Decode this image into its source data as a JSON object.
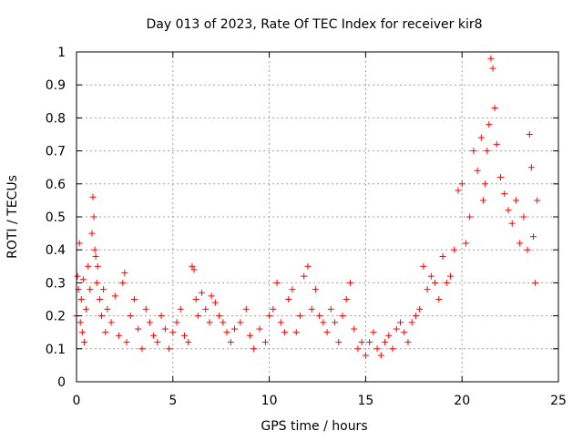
{
  "chart_data": {
    "type": "scatter",
    "title": "Day 013 of 2023, Rate Of TEC Index for receiver kir8",
    "xlabel": "GPS time / hours",
    "ylabel": "ROTI / TECUs",
    "xlim": [
      0,
      25
    ],
    "ylim": [
      0,
      1
    ],
    "x_ticks": [
      "0",
      "5",
      "10",
      "15",
      "20",
      "25"
    ],
    "y_ticks": [
      "0",
      "0.1",
      "0.2",
      "0.3",
      "0.4",
      "0.5",
      "0.6",
      "0.7",
      "0.8",
      "0.9",
      "1"
    ],
    "grid": true,
    "marker": "+",
    "color": "#ff0000",
    "series": [
      {
        "x": [
          0.0,
          0.05,
          0.1,
          0.15,
          0.2,
          0.25,
          0.3,
          0.35,
          0.4,
          0.5,
          0.6,
          0.7,
          0.8,
          0.85,
          0.9,
          0.95,
          1.0,
          1.05,
          1.1,
          1.2,
          1.3,
          1.4,
          1.5,
          1.6,
          1.8,
          2.0,
          2.2,
          2.4,
          2.5,
          2.6,
          2.8,
          3.0,
          3.2,
          3.4,
          3.6,
          3.8,
          4.0,
          4.2,
          4.4,
          4.6,
          4.8,
          5.0,
          5.2,
          5.4,
          5.6,
          5.8,
          6.0,
          6.1,
          6.2,
          6.3,
          6.5,
          6.7,
          6.9,
          7.0,
          7.2,
          7.4,
          7.6,
          7.8,
          8.0,
          8.2,
          8.5,
          8.8,
          9.0,
          9.2,
          9.5,
          9.8,
          10.0,
          10.2,
          10.4,
          10.6,
          10.8,
          11.0,
          11.2,
          11.4,
          11.6,
          11.8,
          12.0,
          12.2,
          12.4,
          12.6,
          12.8,
          13.0,
          13.2,
          13.4,
          13.6,
          13.8,
          14.0,
          14.2,
          14.4,
          14.6,
          14.8,
          15.0,
          15.2,
          15.4,
          15.6,
          15.8,
          16.0,
          16.2,
          16.4,
          16.6,
          16.8,
          17.0,
          17.2,
          17.4,
          17.6,
          17.8,
          18.0,
          18.2,
          18.4,
          18.6,
          18.8,
          19.0,
          19.2,
          19.4,
          19.6,
          19.8,
          20.0,
          20.2,
          20.4,
          20.6,
          20.8,
          21.0,
          21.1,
          21.2,
          21.3,
          21.4,
          21.5,
          21.6,
          21.7,
          21.8,
          22.0,
          22.2,
          22.4,
          22.6,
          22.8,
          23.0,
          23.2,
          23.4,
          23.5,
          23.6,
          23.7,
          23.8,
          23.9
        ],
        "y": [
          0.2,
          0.32,
          0.28,
          0.42,
          0.18,
          0.25,
          0.15,
          0.31,
          0.12,
          0.22,
          0.35,
          0.28,
          0.45,
          0.56,
          0.5,
          0.4,
          0.38,
          0.3,
          0.35,
          0.25,
          0.2,
          0.28,
          0.15,
          0.22,
          0.18,
          0.26,
          0.14,
          0.3,
          0.33,
          0.12,
          0.2,
          0.25,
          0.16,
          0.1,
          0.22,
          0.18,
          0.14,
          0.12,
          0.2,
          0.16,
          0.1,
          0.15,
          0.18,
          0.22,
          0.14,
          0.12,
          0.35,
          0.34,
          0.25,
          0.2,
          0.27,
          0.22,
          0.18,
          0.26,
          0.24,
          0.2,
          0.18,
          0.15,
          0.12,
          0.16,
          0.18,
          0.22,
          0.14,
          0.1,
          0.16,
          0.12,
          0.2,
          0.22,
          0.3,
          0.18,
          0.15,
          0.25,
          0.28,
          0.15,
          0.2,
          0.32,
          0.35,
          0.22,
          0.28,
          0.2,
          0.18,
          0.15,
          0.22,
          0.18,
          0.12,
          0.2,
          0.25,
          0.3,
          0.16,
          0.1,
          0.12,
          0.08,
          0.12,
          0.15,
          0.1,
          0.08,
          0.12,
          0.14,
          0.1,
          0.16,
          0.18,
          0.15,
          0.12,
          0.18,
          0.2,
          0.22,
          0.35,
          0.28,
          0.32,
          0.3,
          0.25,
          0.38,
          0.3,
          0.32,
          0.4,
          0.58,
          0.6,
          0.42,
          0.5,
          0.7,
          0.64,
          0.74,
          0.55,
          0.6,
          0.7,
          0.78,
          0.98,
          0.95,
          0.83,
          0.72,
          0.62,
          0.57,
          0.52,
          0.48,
          0.55,
          0.42,
          0.5,
          0.4,
          0.75,
          0.65,
          0.44,
          0.3,
          0.55
        ]
      }
    ]
  }
}
